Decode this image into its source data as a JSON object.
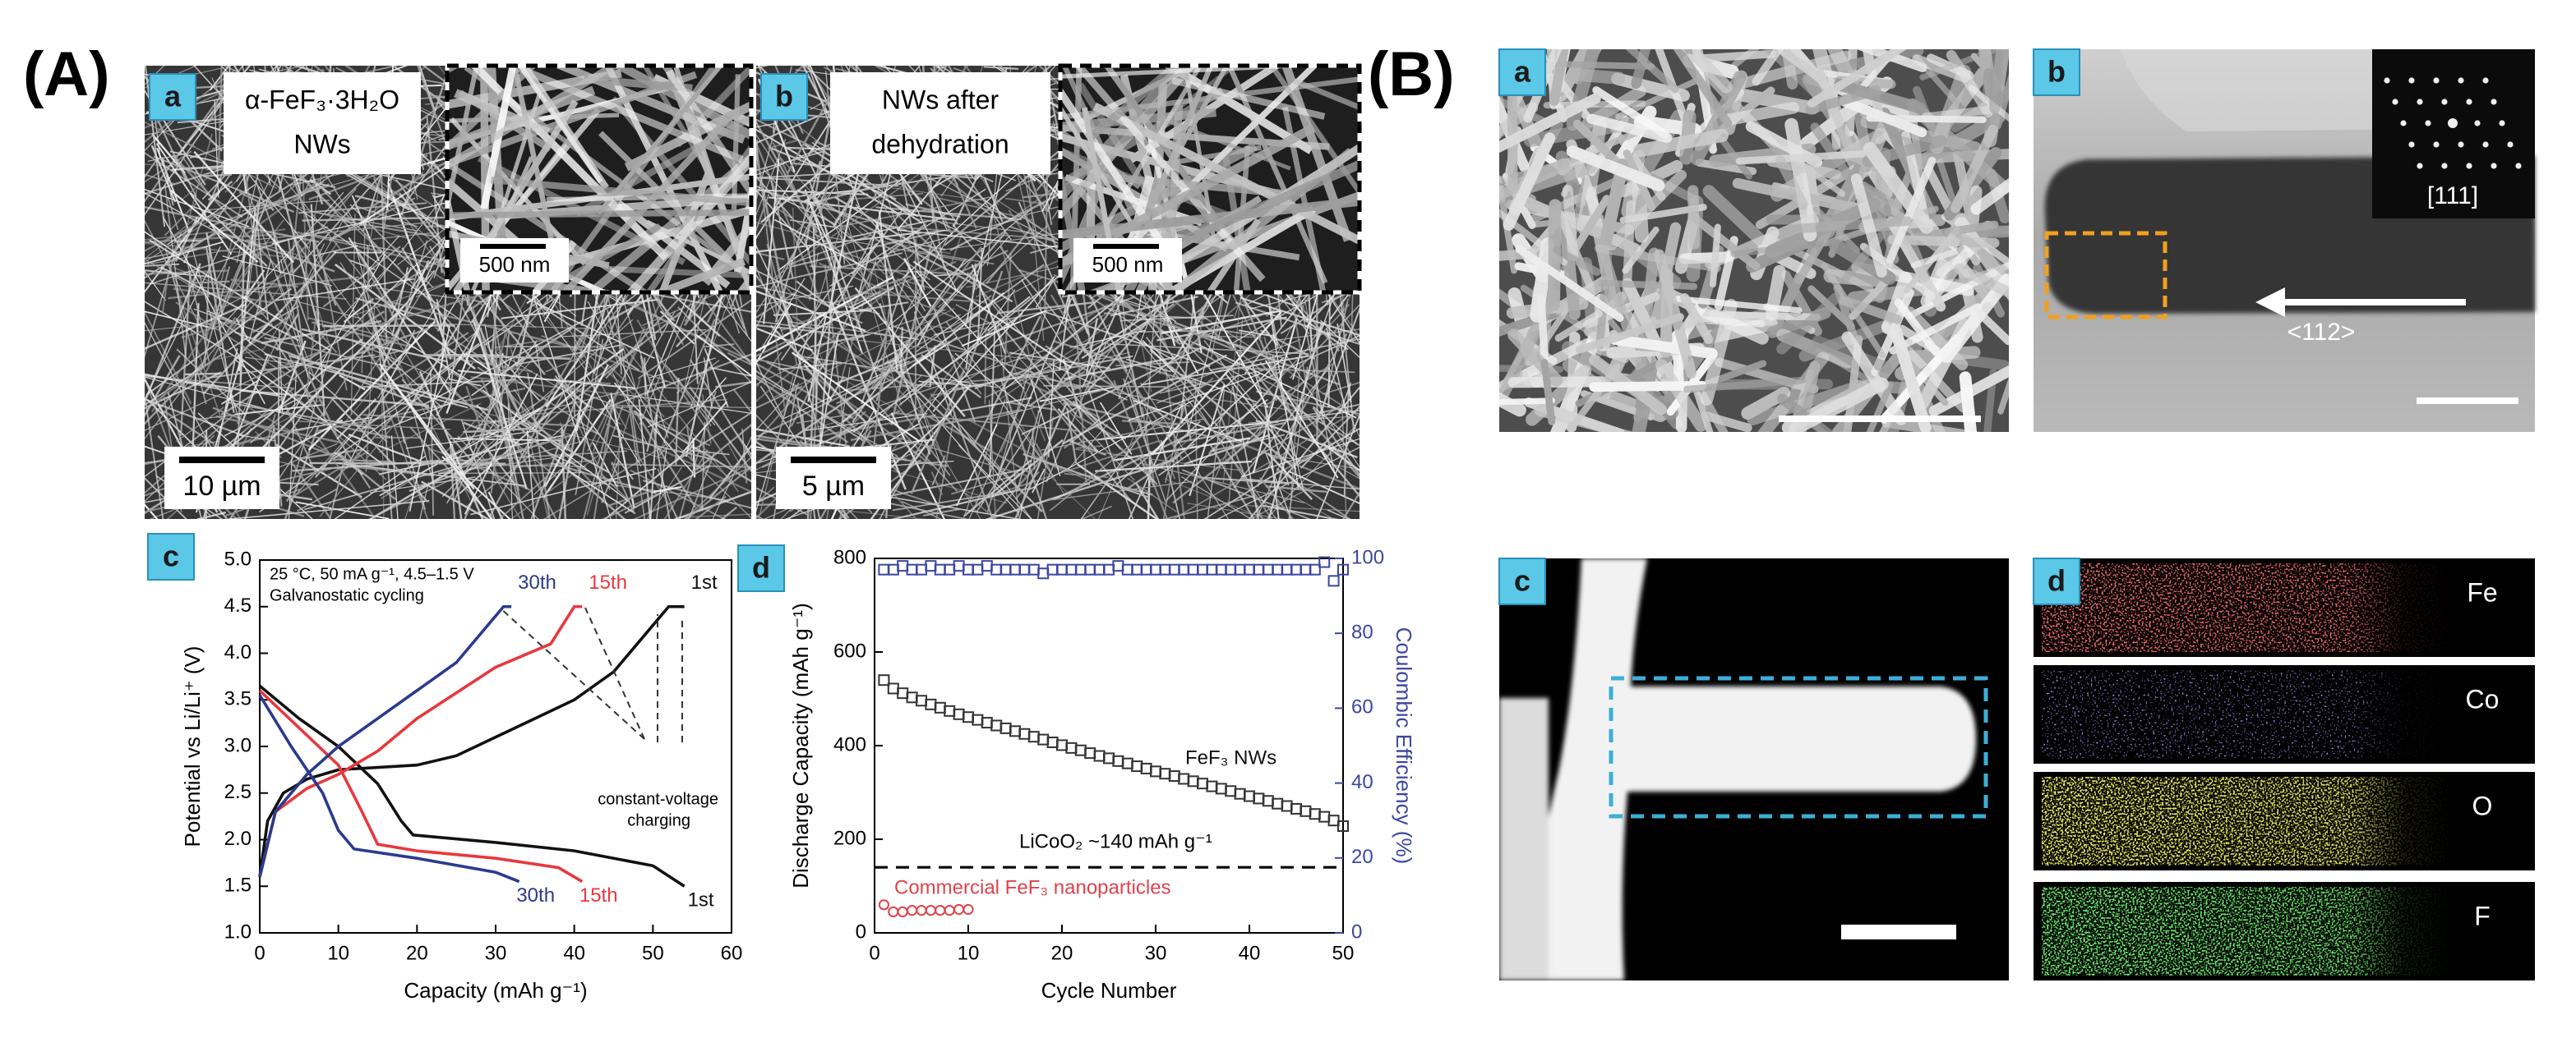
{
  "figure": {
    "labels": [
      "(A)",
      "(B)"
    ],
    "A": [
      {
        "letter": "a",
        "caption": [
          "α-FeF₃·3H₂O",
          "NWs"
        ],
        "scale_bar": "10 µm",
        "inset_scale_bar": "500 nm"
      },
      {
        "letter": "b",
        "caption": [
          "NWs after",
          "dehydration"
        ],
        "scale_bar": "5 µm",
        "inset_scale_bar": "500 nm"
      }
    ],
    "B": [
      {
        "letter": "a"
      },
      {
        "letter": "b",
        "zone_axis": "[111]",
        "direction": "<112>"
      },
      {
        "letter": "c"
      },
      {
        "letter": "d",
        "elements": [
          "Fe",
          "Co",
          "O",
          "F"
        ]
      }
    ]
  },
  "chart_data": [
    {
      "type": "line",
      "panel": "c",
      "xlabel": "Capacity (mAh g⁻¹)",
      "ylabel": "Potential vs Li/Li⁺ (V)",
      "annotations": [
        "25 °C, 50 mA g⁻¹, 4.5–1.5 V",
        "Galvanostatic cycling",
        "constant-voltage",
        "charging"
      ],
      "xlim": [
        0,
        60
      ],
      "ylim": [
        1,
        5
      ],
      "xticks": [
        0,
        10,
        20,
        30,
        40,
        50,
        60
      ],
      "yticks": [
        {
          "value": 1,
          "label": "1.0"
        },
        1.5,
        {
          "value": 2,
          "label": "2.0"
        },
        2.5,
        {
          "value": 3,
          "label": "3.0"
        },
        3.5,
        {
          "value": 4,
          "label": "4.0"
        },
        4.5,
        {
          "value": 5,
          "label": "5.0"
        }
      ],
      "series": [
        {
          "name": "1st",
          "color": "#111111",
          "x": [
            0,
            5,
            10,
            15,
            18,
            19.5,
            30,
            40,
            50,
            54,
            null,
            0,
            1,
            3,
            6,
            10,
            20,
            25,
            30,
            40,
            45,
            50,
            52,
            54
          ],
          "values": [
            3.65,
            3.3,
            3.0,
            2.6,
            2.2,
            2.05,
            1.97,
            1.88,
            1.72,
            1.5,
            null,
            1.6,
            2.2,
            2.5,
            2.65,
            2.75,
            2.8,
            2.9,
            3.1,
            3.5,
            3.8,
            4.3,
            4.5,
            4.5
          ]
        },
        {
          "name": "15th",
          "color": "#e8383d",
          "x": [
            0,
            5,
            10,
            13,
            15,
            20,
            30,
            38,
            41,
            null,
            0,
            2,
            6,
            10,
            15,
            20,
            30,
            37,
            40,
            41
          ],
          "values": [
            3.6,
            3.2,
            2.8,
            2.3,
            1.95,
            1.88,
            1.8,
            1.7,
            1.55,
            null,
            1.6,
            2.3,
            2.55,
            2.7,
            2.95,
            3.3,
            3.85,
            4.1,
            4.5,
            4.5
          ]
        },
        {
          "name": "30th",
          "color": "#2b3a8f",
          "x": [
            0,
            4,
            8,
            10,
            12,
            20,
            30,
            33,
            null,
            0,
            2,
            6,
            10,
            15,
            20,
            25,
            30,
            31,
            32
          ],
          "values": [
            3.55,
            3.0,
            2.5,
            2.1,
            1.9,
            1.8,
            1.65,
            1.55,
            null,
            1.6,
            2.3,
            2.7,
            3.0,
            3.3,
            3.6,
            3.9,
            4.4,
            4.5,
            4.5
          ]
        }
      ]
    },
    {
      "type": "scatter",
      "panel": "d",
      "xlabel": "Cycle Number",
      "ylabel": "Discharge Capacity (mAh g⁻¹)",
      "y2label": "Coulombic Efficiency (%)",
      "xlim": [
        0,
        50
      ],
      "ylim": [
        0,
        800
      ],
      "y2lim": [
        0,
        100
      ],
      "xticks": [
        0,
        10,
        20,
        30,
        40,
        50
      ],
      "yticks": [
        0,
        200,
        400,
        600,
        800
      ],
      "y2ticks": [
        0,
        20,
        40,
        60,
        80,
        100
      ],
      "reference_line": {
        "value": 140,
        "label": "LiCoO₂ ~140 mAh g⁻¹"
      },
      "series": [
        {
          "name": "FeF₃ NWs",
          "color": "#333333",
          "marker": "square",
          "x": [
            1,
            2,
            3,
            4,
            5,
            6,
            7,
            8,
            9,
            10,
            11,
            12,
            13,
            14,
            15,
            16,
            17,
            18,
            19,
            20,
            21,
            22,
            23,
            24,
            25,
            26,
            27,
            28,
            29,
            30,
            31,
            32,
            33,
            34,
            35,
            36,
            37,
            38,
            39,
            40,
            41,
            42,
            43,
            44,
            45,
            46,
            47,
            48,
            49,
            50
          ],
          "values": [
            540,
            522,
            512,
            503,
            496,
            488,
            481,
            474,
            467,
            461,
            455,
            449,
            443,
            437,
            431,
            425,
            419,
            413,
            407,
            401,
            395,
            390,
            384,
            378,
            373,
            367,
            362,
            356,
            351,
            345,
            340,
            335,
            329,
            324,
            319,
            313,
            308,
            303,
            297,
            292,
            287,
            282,
            276,
            271,
            265,
            260,
            254,
            248,
            240,
            228
          ]
        },
        {
          "name": "Commercial FeF₃ nanoparticles",
          "color": "#e0424b",
          "marker": "circle",
          "x": [
            1,
            2,
            3,
            4,
            5,
            6,
            7,
            8,
            9,
            10
          ],
          "values": [
            60,
            45,
            45,
            48,
            48,
            48,
            48,
            48,
            50,
            50
          ]
        },
        {
          "color": "#3c46a0",
          "marker": "square",
          "axis": "y2",
          "x": [
            1,
            2,
            3,
            4,
            5,
            6,
            7,
            8,
            9,
            10,
            11,
            12,
            13,
            14,
            15,
            16,
            17,
            18,
            19,
            20,
            21,
            22,
            23,
            24,
            25,
            26,
            27,
            28,
            29,
            30,
            31,
            32,
            33,
            34,
            35,
            36,
            37,
            38,
            39,
            40,
            41,
            42,
            43,
            44,
            45,
            46,
            47,
            48,
            49,
            50
          ],
          "values": [
            97,
            97,
            98,
            97,
            97,
            98,
            97,
            97,
            98,
            97,
            97,
            98,
            97,
            97,
            97,
            97,
            97,
            96,
            97,
            97,
            97,
            97,
            97,
            97,
            97,
            98,
            97,
            97,
            97,
            97,
            97,
            97,
            97,
            97,
            97,
            97,
            97,
            97,
            97,
            97,
            97,
            97,
            97,
            97,
            97,
            97,
            97,
            99,
            94,
            97
          ]
        }
      ]
    }
  ]
}
